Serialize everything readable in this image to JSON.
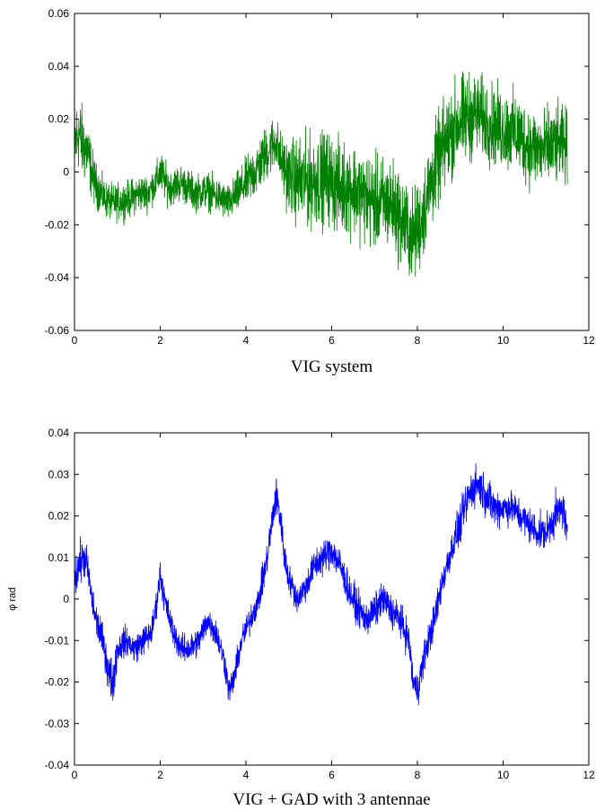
{
  "chart_data": [
    {
      "type": "line",
      "xlabel": "VIG system",
      "ylabel": "",
      "xlim": [
        0,
        12
      ],
      "ylim": [
        -0.06,
        0.06
      ],
      "xticks": [
        "0",
        "2",
        "4",
        "6",
        "8",
        "10",
        "12"
      ],
      "yticks": [
        "-0.06",
        "-0.04",
        "-0.02",
        "0",
        "0.02",
        "0.04",
        "0.06"
      ],
      "grid": false,
      "series": [
        {
          "color": "#008000",
          "x": [
            0,
            0.1,
            0.2,
            0.3,
            0.4,
            0.5,
            0.7,
            0.9,
            1.1,
            1.3,
            1.5,
            1.7,
            1.9,
            2.0,
            2.2,
            2.5,
            2.8,
            3.1,
            3.4,
            3.6,
            3.9,
            4.2,
            4.4,
            4.6,
            4.7,
            4.8,
            5.0,
            5.3,
            5.6,
            5.9,
            6.2,
            6.5,
            6.8,
            7.1,
            7.4,
            7.7,
            7.9,
            8.1,
            8.3,
            8.5,
            8.7,
            8.9,
            9.1,
            9.4,
            9.7,
            10.0,
            10.3,
            10.6,
            10.9,
            11.2,
            11.5
          ],
          "y": [
            0.01,
            0.015,
            0.01,
            0.008,
            0.0,
            -0.005,
            -0.01,
            -0.012,
            -0.011,
            -0.01,
            -0.008,
            -0.008,
            -0.004,
            0.0,
            -0.006,
            -0.004,
            -0.008,
            -0.007,
            -0.01,
            -0.012,
            -0.006,
            0.0,
            0.005,
            0.01,
            0.012,
            0.005,
            -0.002,
            -0.004,
            -0.003,
            -0.002,
            -0.006,
            -0.006,
            -0.01,
            -0.012,
            -0.012,
            -0.02,
            -0.025,
            -0.018,
            -0.005,
            0.005,
            0.012,
            0.018,
            0.02,
            0.022,
            0.018,
            0.016,
            0.015,
            0.01,
            0.008,
            0.01,
            0.01
          ],
          "spread": [
            0.025,
            0.02,
            0.02,
            0.018,
            0.015,
            0.012,
            0.01,
            0.01,
            0.01,
            0.01,
            0.01,
            0.01,
            0.01,
            0.012,
            0.01,
            0.01,
            0.01,
            0.01,
            0.01,
            0.01,
            0.012,
            0.015,
            0.015,
            0.015,
            0.015,
            0.015,
            0.02,
            0.025,
            0.025,
            0.025,
            0.025,
            0.025,
            0.025,
            0.025,
            0.025,
            0.025,
            0.025,
            0.025,
            0.025,
            0.025,
            0.025,
            0.025,
            0.025,
            0.022,
            0.022,
            0.022,
            0.022,
            0.022,
            0.022,
            0.022,
            0.02
          ]
        }
      ]
    },
    {
      "type": "line",
      "xlabel": "VIG + GAD with 3 antennae",
      "ylabel": "φ rad",
      "xlim": [
        0,
        12
      ],
      "ylim": [
        -0.04,
        0.04
      ],
      "xticks": [
        "0",
        "2",
        "4",
        "6",
        "8",
        "10",
        "12"
      ],
      "yticks": [
        "-0.04",
        "-0.03",
        "-0.02",
        "-0.01",
        "0",
        "0.01",
        "0.02",
        "0.03",
        "0.04"
      ],
      "grid": false,
      "series": [
        {
          "color": "#0000ff",
          "x": [
            0,
            0.1,
            0.2,
            0.3,
            0.4,
            0.5,
            0.6,
            0.7,
            0.8,
            0.9,
            1.0,
            1.2,
            1.4,
            1.6,
            1.8,
            1.9,
            2.0,
            2.1,
            2.3,
            2.5,
            2.7,
            2.9,
            3.1,
            3.3,
            3.5,
            3.6,
            3.7,
            3.9,
            4.1,
            4.3,
            4.5,
            4.6,
            4.7,
            4.8,
            4.9,
            5.0,
            5.2,
            5.4,
            5.6,
            5.8,
            6.0,
            6.2,
            6.4,
            6.6,
            6.8,
            7.0,
            7.2,
            7.4,
            7.6,
            7.8,
            7.9,
            8.0,
            8.2,
            8.4,
            8.6,
            8.8,
            9.0,
            9.2,
            9.4,
            9.6,
            9.8,
            10.0,
            10.2,
            10.4,
            10.6,
            10.8,
            11.0,
            11.2,
            11.4,
            11.5
          ],
          "y": [
            0.005,
            0.008,
            0.01,
            0.008,
            0.0,
            -0.005,
            -0.008,
            -0.012,
            -0.018,
            -0.02,
            -0.012,
            -0.01,
            -0.012,
            -0.01,
            -0.008,
            -0.002,
            0.006,
            0.0,
            -0.008,
            -0.012,
            -0.012,
            -0.01,
            -0.005,
            -0.008,
            -0.015,
            -0.022,
            -0.02,
            -0.01,
            -0.005,
            0.0,
            0.01,
            0.018,
            0.025,
            0.02,
            0.01,
            0.005,
            0.0,
            0.003,
            0.008,
            0.01,
            0.012,
            0.008,
            0.002,
            -0.002,
            -0.005,
            -0.003,
            0.0,
            -0.003,
            -0.005,
            -0.01,
            -0.02,
            -0.022,
            -0.012,
            -0.005,
            0.005,
            0.012,
            0.018,
            0.025,
            0.028,
            0.025,
            0.022,
            0.022,
            0.022,
            0.02,
            0.018,
            0.016,
            0.016,
            0.02,
            0.022,
            0.015
          ],
          "spread": [
            0.008,
            0.008,
            0.007,
            0.006,
            0.006,
            0.006,
            0.006,
            0.006,
            0.007,
            0.008,
            0.006,
            0.005,
            0.005,
            0.005,
            0.005,
            0.005,
            0.005,
            0.005,
            0.005,
            0.005,
            0.005,
            0.005,
            0.005,
            0.005,
            0.005,
            0.005,
            0.005,
            0.005,
            0.005,
            0.005,
            0.006,
            0.006,
            0.007,
            0.006,
            0.006,
            0.005,
            0.005,
            0.005,
            0.006,
            0.006,
            0.006,
            0.006,
            0.006,
            0.006,
            0.006,
            0.006,
            0.006,
            0.006,
            0.006,
            0.006,
            0.006,
            0.006,
            0.006,
            0.006,
            0.006,
            0.006,
            0.007,
            0.007,
            0.007,
            0.007,
            0.007,
            0.006,
            0.006,
            0.006,
            0.006,
            0.006,
            0.006,
            0.007,
            0.007,
            0.006
          ]
        }
      ]
    }
  ]
}
